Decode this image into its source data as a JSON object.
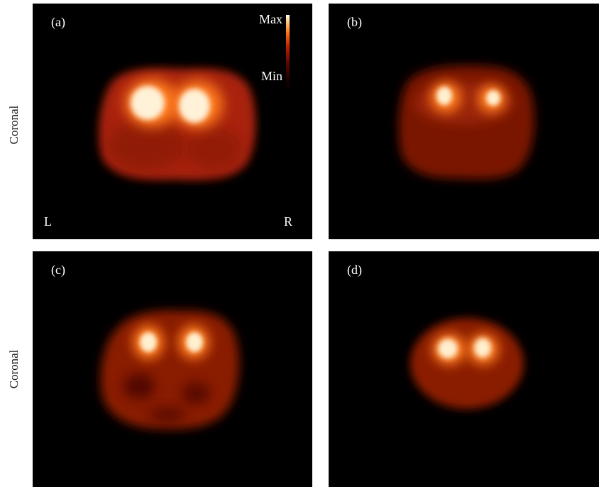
{
  "row_labels": [
    "Coronal",
    "Coronal"
  ],
  "panels": [
    {
      "letter": "(a)",
      "orientation_left": "L",
      "orientation_right": "R",
      "scale_max": "Max",
      "scale_min": "Min"
    },
    {
      "letter": "(b)"
    },
    {
      "letter": "(c)"
    },
    {
      "letter": "(d)"
    }
  ],
  "colors": {
    "background": "#000000",
    "page": "#ffffff",
    "colormap": [
      "#000000",
      "#4a0600",
      "#9a1a00",
      "#e05010",
      "#ffb060",
      "#ffffff"
    ]
  }
}
